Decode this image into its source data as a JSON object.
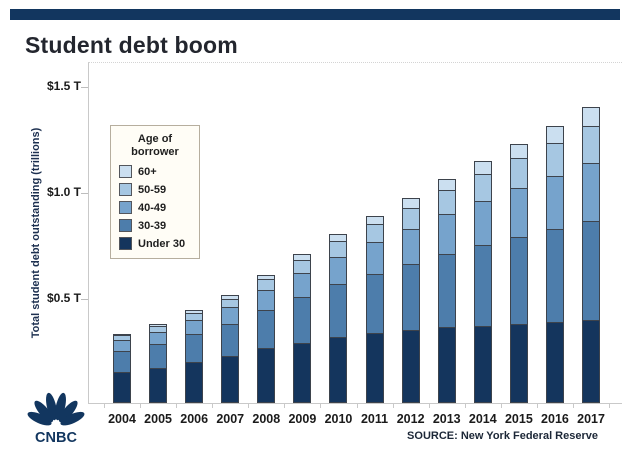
{
  "header": {
    "title": "Student debt boom"
  },
  "branding": {
    "network": "CNBC"
  },
  "source": {
    "label": "SOURCE: New York Federal Reserve"
  },
  "axes": {
    "y_title": "Total student debt outstanding (trillions)"
  },
  "legend": {
    "title": "Age of borrower",
    "items": [
      {
        "label": "60+",
        "color": "#cbdff0"
      },
      {
        "label": "50-59",
        "color": "#a6c7e2"
      },
      {
        "label": "40-49",
        "color": "#76a3cc"
      },
      {
        "label": "30-39",
        "color": "#4d7dab"
      },
      {
        "label": "Under 30",
        "color": "#14355d"
      }
    ]
  },
  "colors": {
    "brand_navy": "#12365f",
    "axis_gray": "#c9c9c9",
    "legend_background": "#fffdf6"
  },
  "chart_data": {
    "type": "bar",
    "stacked": true,
    "title": "Student debt boom",
    "xlabel": "",
    "ylabel": "Total student debt outstanding (trillions)",
    "unit": "trillions of USD",
    "ylim": [
      0,
      1.5
    ],
    "grid": false,
    "legend_position": "upper-left-inside",
    "source": "SOURCE: New York Federal Reserve",
    "yticks": [
      {
        "value": 0.5,
        "label": "$0.5 T"
      },
      {
        "value": 1.0,
        "label": "$1.0 T"
      },
      {
        "value": 1.5,
        "label": "$1.5 T"
      }
    ],
    "categories": [
      "2004",
      "2005",
      "2006",
      "2007",
      "2008",
      "2009",
      "2010",
      "2011",
      "2012",
      "2013",
      "2014",
      "2015",
      "2016",
      "2017"
    ],
    "series": [
      {
        "name": "Under 30",
        "color": "#14355d",
        "values": [
          0.146,
          0.166,
          0.193,
          0.222,
          0.26,
          0.285,
          0.31,
          0.33,
          0.345,
          0.36,
          0.365,
          0.375,
          0.38,
          0.39
        ]
      },
      {
        "name": "30-39",
        "color": "#4d7dab",
        "values": [
          0.105,
          0.118,
          0.135,
          0.155,
          0.185,
          0.222,
          0.255,
          0.285,
          0.315,
          0.35,
          0.385,
          0.415,
          0.445,
          0.475
        ]
      },
      {
        "name": "40-49",
        "color": "#76a3cc",
        "values": [
          0.055,
          0.062,
          0.072,
          0.083,
          0.098,
          0.118,
          0.135,
          0.152,
          0.17,
          0.192,
          0.212,
          0.233,
          0.255,
          0.278
        ]
      },
      {
        "name": "50-59",
        "color": "#a6c7e2",
        "values": [
          0.027,
          0.032,
          0.038,
          0.045,
          0.054,
          0.066,
          0.078,
          0.09,
          0.103,
          0.118,
          0.132,
          0.146,
          0.162,
          0.18
        ]
      },
      {
        "name": "60+",
        "color": "#cbdff0",
        "values": [
          0.013,
          0.015,
          0.018,
          0.022,
          0.026,
          0.032,
          0.038,
          0.044,
          0.051,
          0.058,
          0.066,
          0.074,
          0.082,
          0.091
        ]
      }
    ],
    "totals": [
      0.346,
      0.393,
      0.456,
      0.527,
      0.623,
      0.723,
      0.816,
      0.901,
      0.984,
      1.078,
      1.16,
      1.243,
      1.324,
      1.414
    ]
  }
}
